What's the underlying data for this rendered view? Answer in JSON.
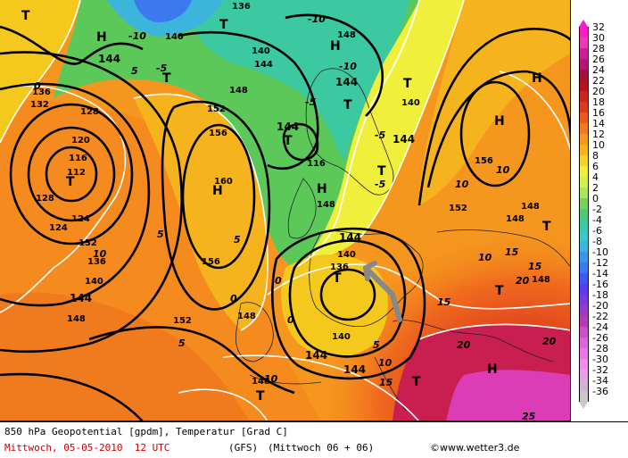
{
  "map": {
    "pressure_centers": [
      {
        "symbol": "T",
        "kind": "low"
      },
      {
        "symbol": "H",
        "kind": "high"
      }
    ],
    "geopotential_labels": [
      "112",
      "116",
      "120",
      "124",
      "128",
      "132",
      "136",
      "140",
      "144",
      "148",
      "152",
      "156",
      "160"
    ],
    "temperature_labels": [
      "-10",
      "-5",
      "0",
      "5",
      "10",
      "15",
      "20",
      "25"
    ],
    "colors": {
      "warm_core": "#e85a10",
      "mid": "#f5a21f",
      "cool": "#5cc85a",
      "cold": "#1ea0d8"
    }
  },
  "legend": {
    "values": [
      "32",
      "30",
      "28",
      "26",
      "24",
      "22",
      "20",
      "18",
      "16",
      "14",
      "12",
      "10",
      "8",
      "6",
      "4",
      "2",
      "0",
      "-2",
      "-4",
      "-6",
      "-8",
      "-10",
      "-12",
      "-14",
      "-16",
      "-18",
      "-20",
      "-22",
      "-24",
      "-26",
      "-28",
      "-30",
      "-32",
      "-34",
      "-36"
    ],
    "colors": [
      "#f81ec8",
      "#e83cb0",
      "#c81e96",
      "#b41478",
      "#a0143c",
      "#b4141e",
      "#c8281e",
      "#dc3c1e",
      "#e85a1e",
      "#f0781e",
      "#f5961e",
      "#f5b41e",
      "#f5d228",
      "#f0f03c",
      "#d2f050",
      "#a8e65a",
      "#78d25a",
      "#50c878",
      "#3cc8a0",
      "#3cc8c8",
      "#3cb4dc",
      "#3c96e6",
      "#3c78f0",
      "#3c5af0",
      "#5a3cf0",
      "#783cdc",
      "#963cc8",
      "#b43cb4",
      "#c850c8",
      "#dc64dc",
      "#e678e6",
      "#f08cf0",
      "#e6a0e6",
      "#d2b4d2",
      "#c8c8c8"
    ]
  },
  "footer": {
    "title": "850 hPa Geopotential [gpdm], Temperatur [Grad C]",
    "date": "Mittwoch, 05-05-2010  12 UTC",
    "model": "(GFS)",
    "run": "(Mittwoch 06 + 06)",
    "copyright": "©www.wetter3.de"
  }
}
